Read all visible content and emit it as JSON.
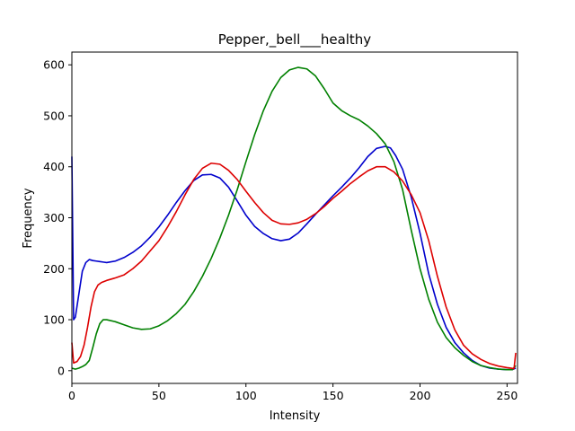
{
  "chart_data": {
    "type": "line",
    "title": "Pepper,_bell___healthy",
    "xlabel": "Intensity",
    "ylabel": "Frequency",
    "xlim": [
      0,
      256
    ],
    "ylim": [
      -25,
      625
    ],
    "xticks": [
      0,
      50,
      100,
      150,
      200,
      250
    ],
    "yticks": [
      0,
      100,
      200,
      300,
      400,
      500,
      600
    ],
    "grid": false,
    "legend": "none",
    "series": [
      {
        "color": "#0000cc",
        "x": [
          0,
          1,
          2,
          4,
          6,
          8,
          10,
          12,
          14,
          16,
          18,
          20,
          25,
          30,
          35,
          40,
          45,
          50,
          55,
          60,
          65,
          70,
          75,
          80,
          85,
          90,
          95,
          100,
          105,
          110,
          115,
          120,
          125,
          130,
          135,
          140,
          145,
          150,
          155,
          160,
          165,
          170,
          175,
          180,
          183,
          186,
          190,
          195,
          200,
          205,
          210,
          215,
          220,
          225,
          230,
          235,
          240,
          245,
          250,
          253,
          255
        ],
        "y": [
          420,
          100,
          105,
          150,
          195,
          212,
          218,
          216,
          215,
          214,
          213,
          212,
          215,
          222,
          232,
          245,
          262,
          282,
          305,
          330,
          353,
          373,
          384,
          385,
          378,
          360,
          333,
          305,
          283,
          269,
          259,
          255,
          258,
          270,
          288,
          307,
          325,
          343,
          360,
          378,
          398,
          420,
          436,
          440,
          437,
          422,
          395,
          340,
          270,
          190,
          130,
          85,
          55,
          35,
          20,
          10,
          5,
          3,
          2,
          2,
          5
        ]
      },
      {
        "color": "#008000",
        "x": [
          0,
          2,
          4,
          6,
          8,
          10,
          12,
          14,
          16,
          18,
          20,
          25,
          30,
          35,
          40,
          45,
          50,
          55,
          60,
          65,
          70,
          75,
          80,
          85,
          90,
          95,
          100,
          105,
          110,
          115,
          120,
          125,
          130,
          135,
          140,
          145,
          150,
          155,
          160,
          165,
          170,
          175,
          180,
          185,
          190,
          195,
          200,
          205,
          210,
          215,
          220,
          225,
          230,
          235,
          240,
          245,
          250,
          253,
          255
        ],
        "y": [
          5,
          3,
          5,
          8,
          12,
          20,
          45,
          72,
          92,
          100,
          100,
          96,
          90,
          84,
          81,
          82,
          88,
          98,
          112,
          130,
          155,
          185,
          220,
          260,
          305,
          355,
          410,
          463,
          510,
          548,
          575,
          590,
          595,
          592,
          578,
          553,
          525,
          510,
          500,
          492,
          480,
          465,
          445,
          410,
          355,
          275,
          200,
          140,
          95,
          65,
          45,
          30,
          18,
          10,
          6,
          3,
          2,
          2,
          10
        ]
      },
      {
        "color": "#dd0000",
        "x": [
          0,
          1,
          3,
          5,
          7,
          9,
          11,
          13,
          15,
          17,
          20,
          25,
          30,
          35,
          40,
          45,
          50,
          55,
          60,
          65,
          70,
          75,
          80,
          85,
          90,
          95,
          100,
          105,
          110,
          115,
          120,
          125,
          130,
          135,
          140,
          145,
          150,
          155,
          160,
          165,
          170,
          175,
          180,
          185,
          190,
          195,
          200,
          205,
          210,
          215,
          220,
          225,
          230,
          235,
          240,
          245,
          250,
          252,
          254,
          255
        ],
        "y": [
          55,
          15,
          18,
          28,
          50,
          85,
          125,
          155,
          168,
          173,
          177,
          182,
          188,
          200,
          215,
          235,
          255,
          282,
          312,
          345,
          375,
          397,
          407,
          405,
          393,
          375,
          352,
          330,
          310,
          295,
          288,
          287,
          290,
          297,
          308,
          322,
          338,
          352,
          367,
          380,
          392,
          400,
          400,
          390,
          372,
          345,
          310,
          255,
          185,
          125,
          80,
          50,
          33,
          22,
          14,
          9,
          6,
          5,
          4,
          35
        ]
      }
    ]
  }
}
